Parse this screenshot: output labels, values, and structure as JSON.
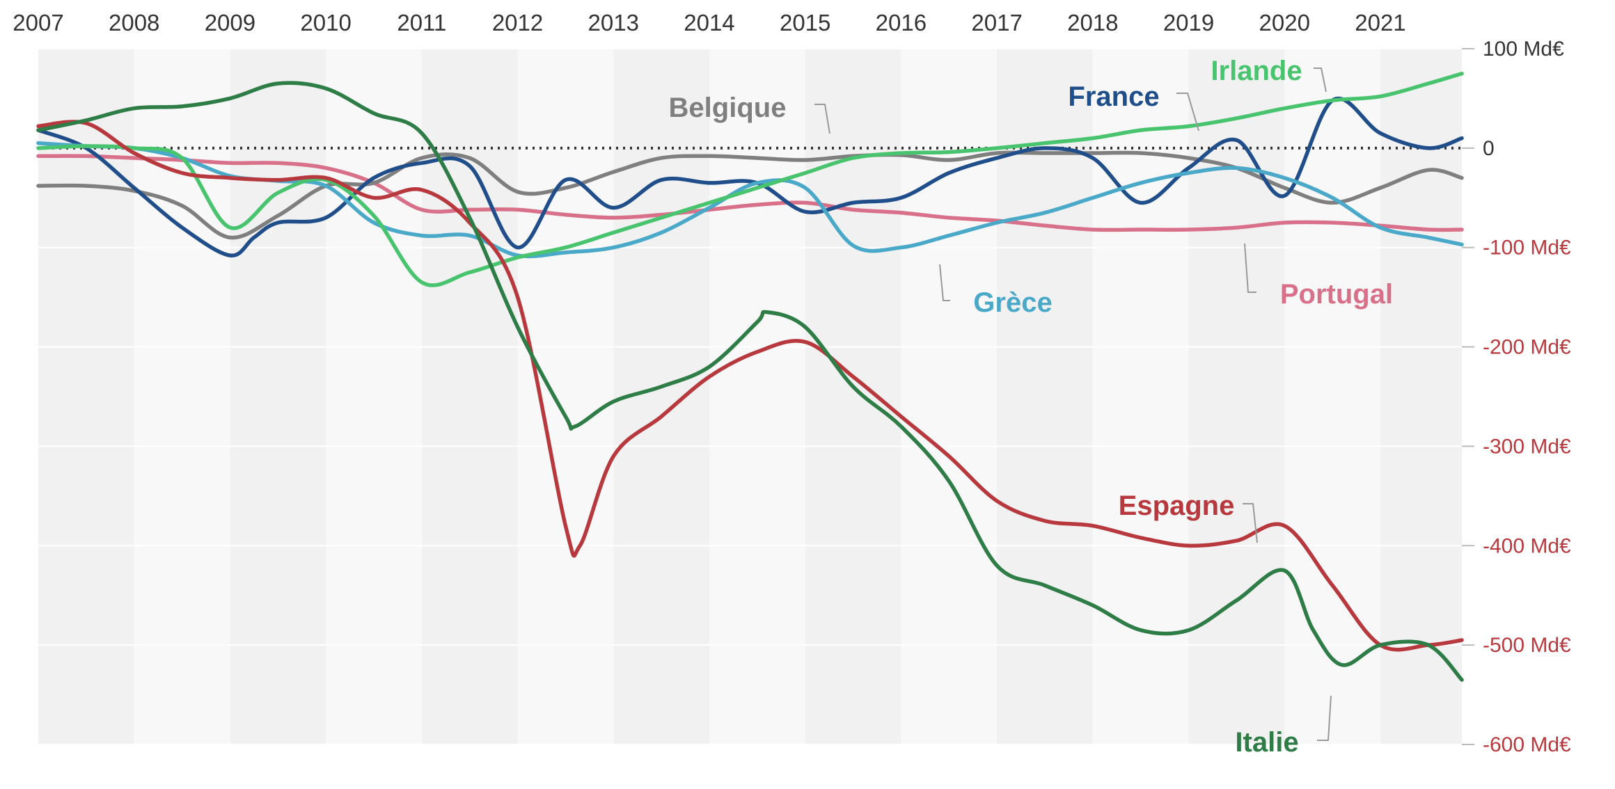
{
  "chart_data": {
    "type": "line",
    "title": "",
    "xlabel": "",
    "ylabel": "",
    "x_ticks": [
      "2007",
      "2008",
      "2009",
      "2010",
      "2011",
      "2012",
      "2013",
      "2014",
      "2015",
      "2016",
      "2017",
      "2018",
      "2019",
      "2020",
      "2021"
    ],
    "xlim": [
      2007.0,
      2021.85
    ],
    "y_ticks": [
      {
        "value": 100,
        "label": "100 Md€",
        "color": "#333333"
      },
      {
        "value": 0,
        "label": "0",
        "color": "#333333"
      },
      {
        "value": -100,
        "label": "-100 Md€",
        "color": "#b8393d"
      },
      {
        "value": -200,
        "label": "-200 Md€",
        "color": "#b8393d"
      },
      {
        "value": -300,
        "label": "-300 Md€",
        "color": "#b8393d"
      },
      {
        "value": -400,
        "label": "-400 Md€",
        "color": "#b8393d"
      },
      {
        "value": -500,
        "label": "-500 Md€",
        "color": "#b8393d"
      },
      {
        "value": -600,
        "label": "-600 Md€",
        "color": "#b8393d"
      }
    ],
    "ylim": [
      -600,
      100
    ],
    "zero_line": "dotted",
    "grid": true,
    "series": [
      {
        "name": "Portugal",
        "color": "#d9708a",
        "x": [
          2007,
          2007.5,
          2008,
          2008.5,
          2009,
          2009.5,
          2010,
          2010.5,
          2011,
          2011.5,
          2012,
          2012.5,
          2013,
          2013.5,
          2014,
          2014.5,
          2015,
          2015.5,
          2016,
          2016.5,
          2017,
          2017.5,
          2018,
          2018.5,
          2019,
          2019.5,
          2020,
          2020.5,
          2021,
          2021.5,
          2021.85
        ],
        "y": [
          -8,
          -8,
          -10,
          -12,
          -15,
          -15,
          -20,
          -35,
          -62,
          -62,
          -62,
          -67,
          -70,
          -67,
          -62,
          -57,
          -55,
          -62,
          -65,
          -70,
          -73,
          -78,
          -82,
          -82,
          -82,
          -80,
          -75,
          -75,
          -78,
          -82,
          -82
        ]
      },
      {
        "name": "Belgique",
        "color": "#7f7f7f",
        "x": [
          2007,
          2007.5,
          2008,
          2008.5,
          2009,
          2009.5,
          2010,
          2010.5,
          2011,
          2011.5,
          2012,
          2012.5,
          2013,
          2013.5,
          2014,
          2014.5,
          2015,
          2015.5,
          2016,
          2016.5,
          2017,
          2017.5,
          2018,
          2018.5,
          2019,
          2019.5,
          2020,
          2020.5,
          2021,
          2021.5,
          2021.85
        ],
        "y": [
          -38,
          -38,
          -43,
          -58,
          -90,
          -68,
          -38,
          -35,
          -10,
          -10,
          -44,
          -40,
          -24,
          -10,
          -8,
          -10,
          -12,
          -8,
          -7,
          -12,
          -5,
          -5,
          -5,
          -5,
          -10,
          -20,
          -40,
          -55,
          -40,
          -22,
          -30
        ]
      },
      {
        "name": "France",
        "color": "#1f4e8a",
        "x": [
          2007,
          2007.5,
          2008,
          2008.5,
          2009,
          2009.25,
          2009.5,
          2010,
          2010.5,
          2011,
          2011.5,
          2012,
          2012.5,
          2013,
          2013.5,
          2014,
          2014.5,
          2015,
          2015.5,
          2016,
          2016.5,
          2017,
          2017.5,
          2018,
          2018.5,
          2019,
          2019.5,
          2020,
          2020.5,
          2021,
          2021.5,
          2021.85
        ],
        "y": [
          18,
          0,
          -40,
          -80,
          -108,
          -90,
          -75,
          -70,
          -30,
          -15,
          -18,
          -100,
          -32,
          -60,
          -32,
          -35,
          -35,
          -64,
          -55,
          -50,
          -25,
          -10,
          0,
          -10,
          -55,
          -20,
          8,
          -48,
          48,
          15,
          0,
          10
        ]
      },
      {
        "name": "Grèce",
        "color": "#4aa8c8",
        "x": [
          2007,
          2007.5,
          2008,
          2008.5,
          2009,
          2009.5,
          2010,
          2010.5,
          2011,
          2011.5,
          2012,
          2012.5,
          2013,
          2013.5,
          2014,
          2014.5,
          2015,
          2015.5,
          2016,
          2016.5,
          2017,
          2017.5,
          2018,
          2018.5,
          2019,
          2019.5,
          2020,
          2020.5,
          2021,
          2021.5,
          2021.85
        ],
        "y": [
          5,
          2,
          0,
          -10,
          -28,
          -33,
          -38,
          -75,
          -88,
          -88,
          -108,
          -105,
          -100,
          -85,
          -60,
          -35,
          -40,
          -98,
          -100,
          -88,
          -75,
          -65,
          -50,
          -35,
          -25,
          -20,
          -30,
          -50,
          -80,
          -90,
          -97
        ]
      },
      {
        "name": "Irlande",
        "color": "#49c46e",
        "x": [
          2007,
          2007.5,
          2008,
          2008.5,
          2009,
          2009.5,
          2010,
          2010.5,
          2011,
          2011.5,
          2012,
          2012.5,
          2013,
          2013.5,
          2014,
          2014.5,
          2015,
          2015.5,
          2016,
          2016.5,
          2017,
          2017.5,
          2018,
          2018.5,
          2019,
          2019.5,
          2020,
          2020.5,
          2021,
          2021.5,
          2021.85
        ],
        "y": [
          0,
          2,
          0,
          -10,
          -80,
          -45,
          -32,
          -68,
          -135,
          -125,
          -110,
          -100,
          -85,
          -70,
          -55,
          -40,
          -25,
          -10,
          -5,
          -4,
          0,
          5,
          10,
          18,
          22,
          30,
          40,
          48,
          52,
          65,
          75
        ]
      },
      {
        "name": "Espagne",
        "color": "#b8393d",
        "x": [
          2007,
          2007.5,
          2008,
          2008.5,
          2009,
          2009.5,
          2010,
          2010.5,
          2011,
          2011.5,
          2012,
          2012.5,
          2012.65,
          2013,
          2013.5,
          2014,
          2014.5,
          2015,
          2015.5,
          2016,
          2016.5,
          2017,
          2017.5,
          2018,
          2018.5,
          2019,
          2019.5,
          2020,
          2020.5,
          2021,
          2021.5,
          2021.85
        ],
        "y": [
          22,
          25,
          -5,
          -25,
          -30,
          -32,
          -30,
          -50,
          -42,
          -75,
          -150,
          -380,
          -400,
          -310,
          -270,
          -230,
          -205,
          -195,
          -230,
          -270,
          -310,
          -355,
          -375,
          -380,
          -392,
          -400,
          -395,
          -380,
          -440,
          -500,
          -500,
          -495
        ]
      },
      {
        "name": "Italie",
        "color": "#2e7d46",
        "x": [
          2007,
          2007.5,
          2008,
          2008.5,
          2009,
          2009.5,
          2010,
          2010.5,
          2011,
          2011.5,
          2012,
          2012.5,
          2012.6,
          2013,
          2013.5,
          2014,
          2014.5,
          2014.6,
          2015,
          2015.5,
          2016,
          2016.5,
          2017,
          2017.5,
          2018,
          2018.5,
          2019,
          2019.5,
          2020,
          2020.3,
          2020.6,
          2021,
          2021.5,
          2021.85
        ],
        "y": [
          18,
          28,
          40,
          42,
          50,
          65,
          60,
          35,
          15,
          -70,
          -180,
          -270,
          -280,
          -255,
          -240,
          -220,
          -175,
          -165,
          -180,
          -240,
          -280,
          -335,
          -420,
          -440,
          -460,
          -485,
          -485,
          -455,
          -425,
          -485,
          -520,
          -500,
          -500,
          -535
        ]
      }
    ],
    "labels": [
      {
        "series": "Belgique",
        "text": "Belgique"
      },
      {
        "series": "France",
        "text": "France"
      },
      {
        "series": "Irlande",
        "text": "Irlande"
      },
      {
        "series": "Grèce",
        "text": "Grèce"
      },
      {
        "series": "Portugal",
        "text": "Portugal"
      },
      {
        "series": "Espagne",
        "text": "Espagne"
      },
      {
        "series": "Italie",
        "text": "Italie"
      }
    ]
  }
}
